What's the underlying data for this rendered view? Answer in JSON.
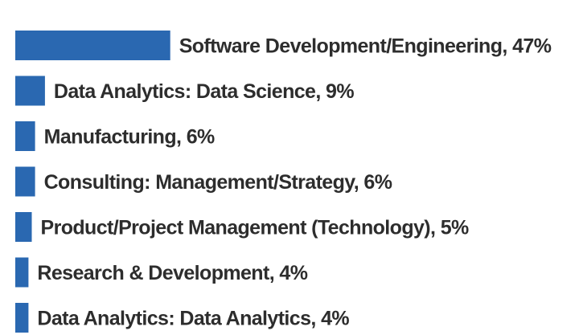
{
  "chart_data": {
    "type": "bar",
    "orientation": "horizontal",
    "bar_color": "#2a68b1",
    "label_color": "#2d2d2d",
    "grid": false,
    "legend": "none",
    "title": "",
    "xlabel": "",
    "ylabel": "",
    "categories": [
      "Software Development/Engineering",
      "Data Analytics: Data Science",
      "Manufacturing",
      "Consulting: Management/Strategy",
      "Product/Project Management (Technology)",
      "Research & Development",
      "Data Analytics: Data Analytics"
    ],
    "values": [
      47,
      9,
      6,
      6,
      5,
      4,
      4
    ],
    "labels": [
      "Software Development/Engineering, 47%",
      "Data Analytics: Data Science, 9%",
      "Manufacturing, 6%",
      "Consulting: Management/Strategy, 6%",
      "Product/Project Management (Technology), 5%",
      "Research & Development, 4%",
      "Data Analytics: Data Analytics, 4%"
    ]
  }
}
